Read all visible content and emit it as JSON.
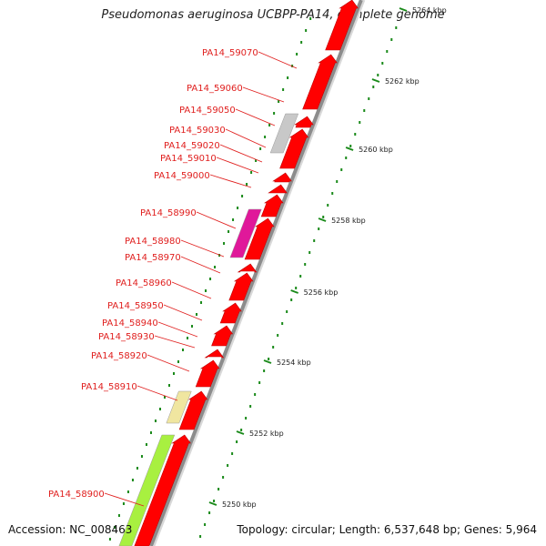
{
  "title": "Pseudomonas aeruginosa UCBPP-PA14, complete genome",
  "footer": {
    "accession": "Accession: NC_008463",
    "summary": "Topology: circular; Length: 6,537,648 bp; Genes: 5,964"
  },
  "colors": {
    "forward_gene": "#ff0000",
    "backbone": "#8c8c8c",
    "tick_dot": "#1a8a1a",
    "label_text": "#e0201f",
    "gene_grey": "#c8c8c8",
    "gene_magenta": "#e0189a",
    "gene_yellow": "#f0e6a0",
    "gene_lime": "#a8f040"
  },
  "gene_labels": [
    "PA14_59070",
    "PA14_59060",
    "PA14_59050",
    "PA14_59030",
    "PA14_59020",
    "PA14_59010",
    "PA14_59000",
    "PA14_58990",
    "PA14_58980",
    "PA14_58970",
    "PA14_58960",
    "PA14_58950",
    "PA14_58940",
    "PA14_58930",
    "PA14_58920",
    "PA14_58910",
    "PA14_58900"
  ],
  "tick_labels": [
    "5264 kbp",
    "5262 kbp",
    "5260 kbp",
    "5258 kbp",
    "5256 kbp",
    "5254 kbp",
    "5252 kbp",
    "5250 kbp"
  ],
  "icons": [
    "forward-gene-arrow",
    "reverse-gene-bar",
    "backbone-line",
    "scale-tick-dot"
  ]
}
